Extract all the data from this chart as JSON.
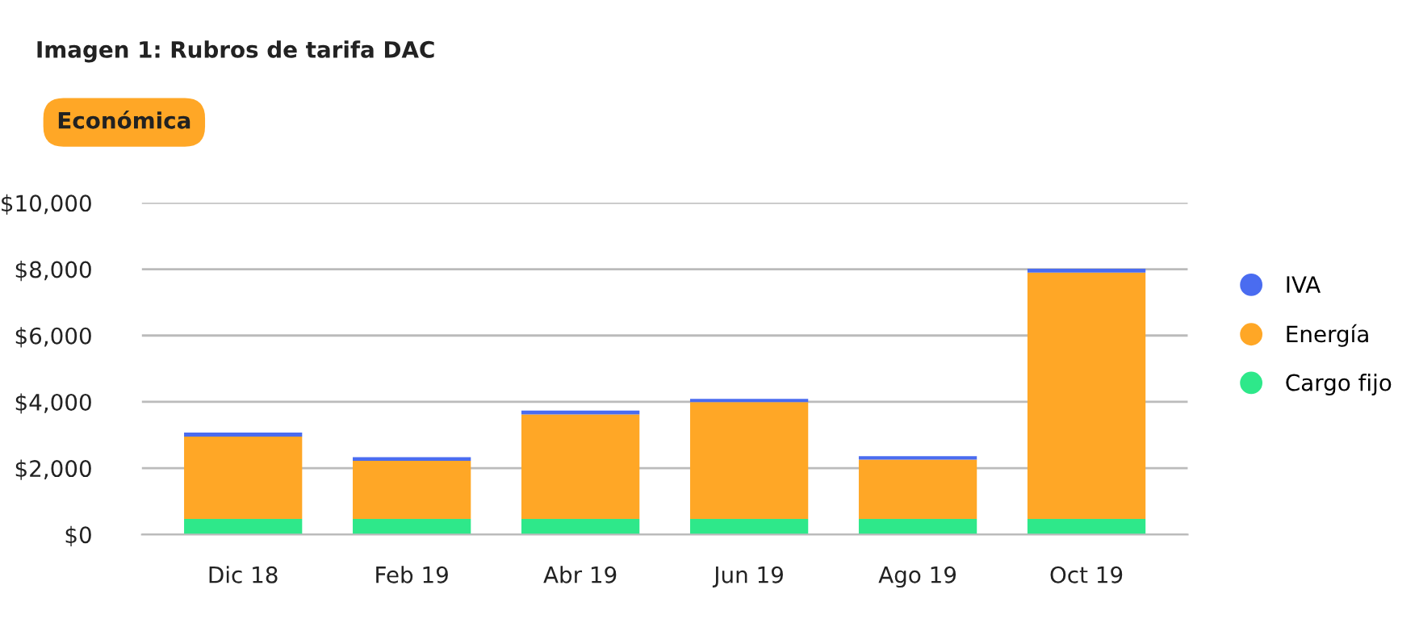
{
  "chart_data": {
    "type": "bar",
    "title": "Imagen 1: Rubros de tarifa DAC",
    "subtitle": "Económica",
    "stacked": true,
    "categories": [
      "Dic 18",
      "Feb 19",
      "Abr 19",
      "Jun 19",
      "Ago 19",
      "Oct 19"
    ],
    "series": [
      {
        "name": "Cargo fijo",
        "color": "#2ee88a",
        "values": [
          470,
          470,
          470,
          470,
          470,
          470
        ]
      },
      {
        "name": "Energía",
        "color": "#ffa726",
        "values": [
          2480,
          1750,
          3150,
          3520,
          1790,
          7430
        ]
      },
      {
        "name": "IVA",
        "color": "#4a6cf0",
        "values": [
          125,
          115,
          115,
          100,
          100,
          115
        ]
      }
    ],
    "ylim": [
      0,
      10000
    ],
    "yticks": [
      {
        "value": 0,
        "label": "$0"
      },
      {
        "value": 2000,
        "label": "$2,000"
      },
      {
        "value": 4000,
        "label": "$4,000"
      },
      {
        "value": 6000,
        "label": "$6,000"
      },
      {
        "value": 8000,
        "label": "$8,000"
      },
      {
        "value": 10000,
        "label": "$10,000"
      }
    ],
    "grid": "y",
    "legend": "right"
  }
}
